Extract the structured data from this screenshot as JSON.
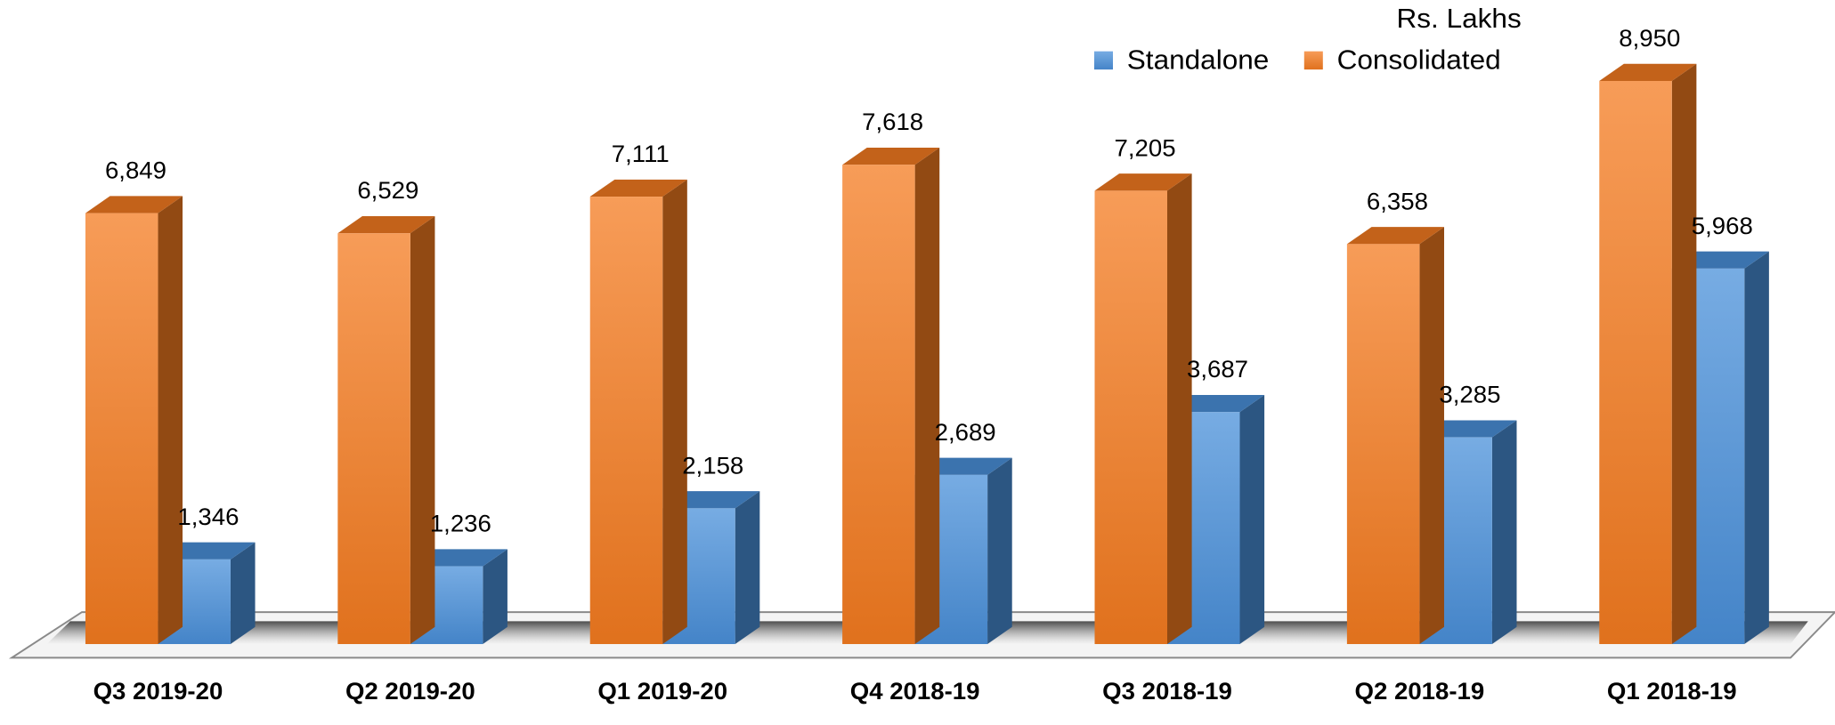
{
  "chart_data": {
    "type": "bar3d",
    "subtitle": "Rs. Lakhs",
    "categories": [
      "Q3 2019-20",
      "Q2 2019-20",
      "Q1 2019-20",
      "Q4 2018-19",
      "Q3 2018-19",
      "Q2 2018-19",
      "Q1 2018-19"
    ],
    "series": [
      {
        "name": "Standalone",
        "color": "#4a90d9",
        "values": [
          1346,
          1236,
          2158,
          2689,
          3687,
          3285,
          5968
        ],
        "value_labels": [
          "1,346",
          "1,236",
          "2,158",
          "2,689",
          "3,687",
          "3,285",
          "5,968"
        ]
      },
      {
        "name": "Consolidated",
        "color": "#f47b20",
        "values": [
          6849,
          6529,
          7111,
          7618,
          7205,
          6358,
          8950
        ],
        "value_labels": [
          "6,849",
          "6,529",
          "7,111",
          "7,618",
          "7,205",
          "6,358",
          "8,950"
        ]
      }
    ],
    "legend": "top-right"
  }
}
